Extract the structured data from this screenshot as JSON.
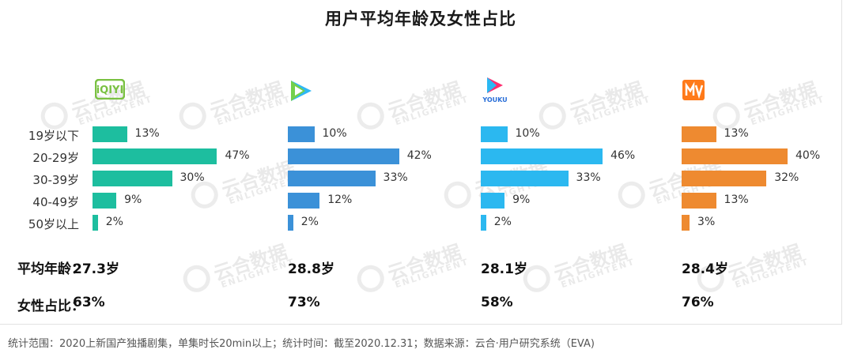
{
  "title": "用户平均年龄及女性占比",
  "labels": {
    "avg_age": "平均年龄：",
    "female_ratio": "女性占比："
  },
  "footer": "统计范围：2020上新国产独播剧集，单集时长20min以上；统计时间：截至2020.12.31；数据来源：云合·用户研究系统（EVA)",
  "watermark": {
    "main": "云合数据",
    "sub": "ENLIGHTENT"
  },
  "logo_text": {
    "iqiyi": "iQIYI",
    "youku": "YOUKU"
  },
  "icons": [
    "iqiyi-logo-icon",
    "tencent-video-logo-icon",
    "youku-logo-icon",
    "mango-tv-logo-icon"
  ],
  "chart_data": {
    "type": "bar",
    "orientation": "horizontal",
    "categories": [
      "19岁以下",
      "20-29岁",
      "30-39岁",
      "40-49岁",
      "50岁以上"
    ],
    "series": [
      {
        "platform": "iqiyi",
        "color": "#1dbe9f",
        "values": [
          13,
          47,
          30,
          9,
          2
        ],
        "labels": [
          "13%",
          "47%",
          "30%",
          "9%",
          "2%"
        ],
        "avg_age": "27.3岁",
        "female": "63%"
      },
      {
        "platform": "tencent",
        "color": "#3b91d8",
        "values": [
          10,
          42,
          33,
          12,
          2
        ],
        "labels": [
          "10%",
          "42%",
          "33%",
          "12%",
          "2%"
        ],
        "avg_age": "28.8岁",
        "female": "73%"
      },
      {
        "platform": "youku",
        "color": "#2bb8f0",
        "values": [
          10,
          46,
          33,
          9,
          2
        ],
        "labels": [
          "10%",
          "46%",
          "33%",
          "9%",
          "2%"
        ],
        "avg_age": "28.1岁",
        "female": "58%"
      },
      {
        "platform": "mango",
        "color": "#ee8a30",
        "values": [
          13,
          40,
          32,
          13,
          3
        ],
        "labels": [
          "13%",
          "40%",
          "32%",
          "13%",
          "3%"
        ],
        "avg_age": "28.4岁",
        "female": "76%"
      }
    ]
  }
}
